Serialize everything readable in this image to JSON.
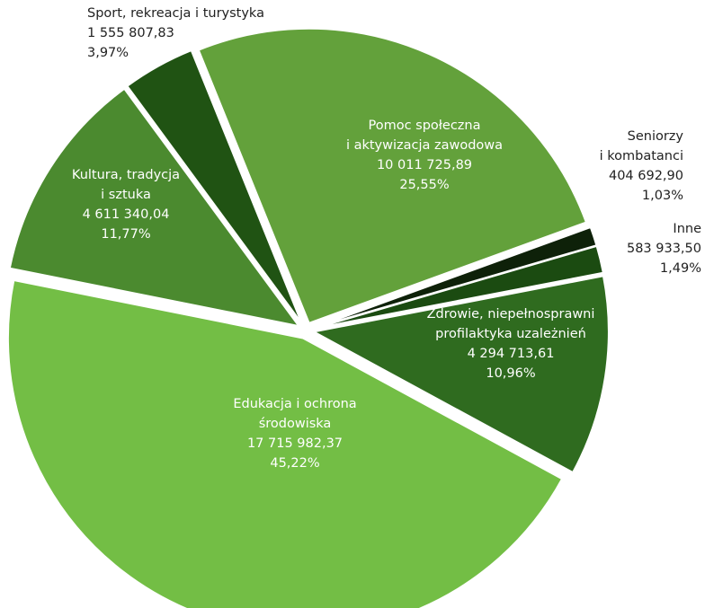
{
  "chart_data": {
    "type": "pie",
    "categories": [
      [
        "Pomoc społeczna",
        "i aktywizacja zawodowa"
      ],
      [
        "Seniorzy",
        "i kombatanci"
      ],
      [
        "Inne"
      ],
      [
        "Zdrowie, niepełnosprawni",
        "profilaktyka uzależnień"
      ],
      [
        "Edukacja i ochrona",
        "środowiska"
      ],
      [
        "Kultura, tradycja",
        "i sztuka"
      ],
      [
        "Sport, rekreacja i turystyka"
      ]
    ],
    "values": [
      10011725.89,
      404692.9,
      583933.5,
      4294713.61,
      17715982.37,
      4611340.04,
      1555807.83
    ],
    "value_labels": [
      "10 011 725,89",
      "404 692,90",
      "583 933,50",
      "4 294 713,61",
      "17 715 982,37",
      "4 611 340,04",
      "1 555 807,83"
    ],
    "shares": [
      25.55,
      1.03,
      1.49,
      10.96,
      45.22,
      11.77,
      3.97
    ],
    "share_labels": [
      "25,55%",
      "1,03%",
      "1,49%",
      "10,96%",
      "45,22%",
      "11,77%",
      "3,97%"
    ],
    "colors": [
      "#63a13b",
      "#0e2109",
      "#1b4b11",
      "#2f6b1f",
      "#73be45",
      "#4b8a2f",
      "#205313"
    ]
  }
}
